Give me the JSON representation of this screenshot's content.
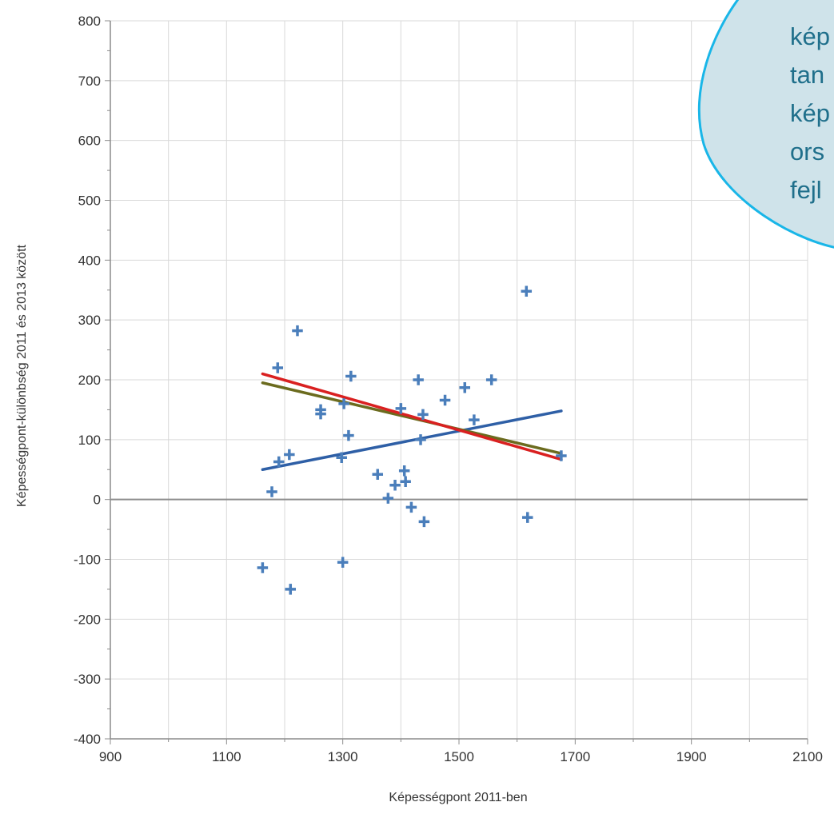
{
  "chart_data": {
    "type": "scatter",
    "xlabel": "Képességpont 2011-ben",
    "ylabel": "Képességpont-különbség 2011 és 2013 között",
    "xlim": [
      900,
      2100
    ],
    "ylim": [
      -400,
      800
    ],
    "x_ticks": [
      900,
      1100,
      1300,
      1500,
      1700,
      1900,
      2100
    ],
    "y_ticks": [
      800,
      700,
      600,
      500,
      400,
      300,
      200,
      100,
      0,
      -100,
      -200,
      -300,
      -400
    ],
    "x_tick_labels": [
      "900",
      "1100",
      "1300",
      "1500",
      "1700",
      "1900",
      "2100"
    ],
    "y_tick_labels": [
      "800",
      "700",
      "600",
      "500",
      "400",
      "300",
      "200",
      "100",
      "0",
      "-100",
      "-200",
      "-300",
      "-400"
    ],
    "grid": true,
    "series": [
      {
        "kind": "points",
        "color": "#4a7ebb",
        "points": [
          [
            1162,
            -114
          ],
          [
            1178,
            13
          ],
          [
            1188,
            220
          ],
          [
            1190,
            63
          ],
          [
            1208,
            75
          ],
          [
            1210,
            -150
          ],
          [
            1222,
            282
          ],
          [
            1262,
            150
          ],
          [
            1262,
            143
          ],
          [
            1298,
            70
          ],
          [
            1300,
            -105
          ],
          [
            1302,
            160
          ],
          [
            1310,
            107
          ],
          [
            1314,
            206
          ],
          [
            1360,
            42
          ],
          [
            1378,
            2
          ],
          [
            1390,
            24
          ],
          [
            1400,
            152
          ],
          [
            1406,
            48
          ],
          [
            1408,
            30
          ],
          [
            1418,
            -13
          ],
          [
            1430,
            200
          ],
          [
            1434,
            100
          ],
          [
            1438,
            142
          ],
          [
            1440,
            -37
          ],
          [
            1476,
            166
          ],
          [
            1510,
            187
          ],
          [
            1526,
            133
          ],
          [
            1556,
            200
          ],
          [
            1616,
            348
          ],
          [
            1618,
            -30
          ],
          [
            1676,
            73
          ]
        ]
      },
      {
        "kind": "trend",
        "color": "#2e5fa6",
        "x": [
          1162,
          1676
        ],
        "y": [
          50,
          148
        ]
      },
      {
        "kind": "trend",
        "color": "#6b6b1e",
        "x": [
          1162,
          1676
        ],
        "y": [
          195,
          77
        ]
      },
      {
        "kind": "trend",
        "color": "#d92020",
        "x": [
          1162,
          1676
        ],
        "y": [
          210,
          67
        ]
      }
    ],
    "annotation": {
      "lines": [
        "kép",
        "tan",
        "kép",
        "ors",
        "fejl"
      ],
      "fill": "#cfe3ea",
      "stroke": "#19b6e8"
    }
  }
}
